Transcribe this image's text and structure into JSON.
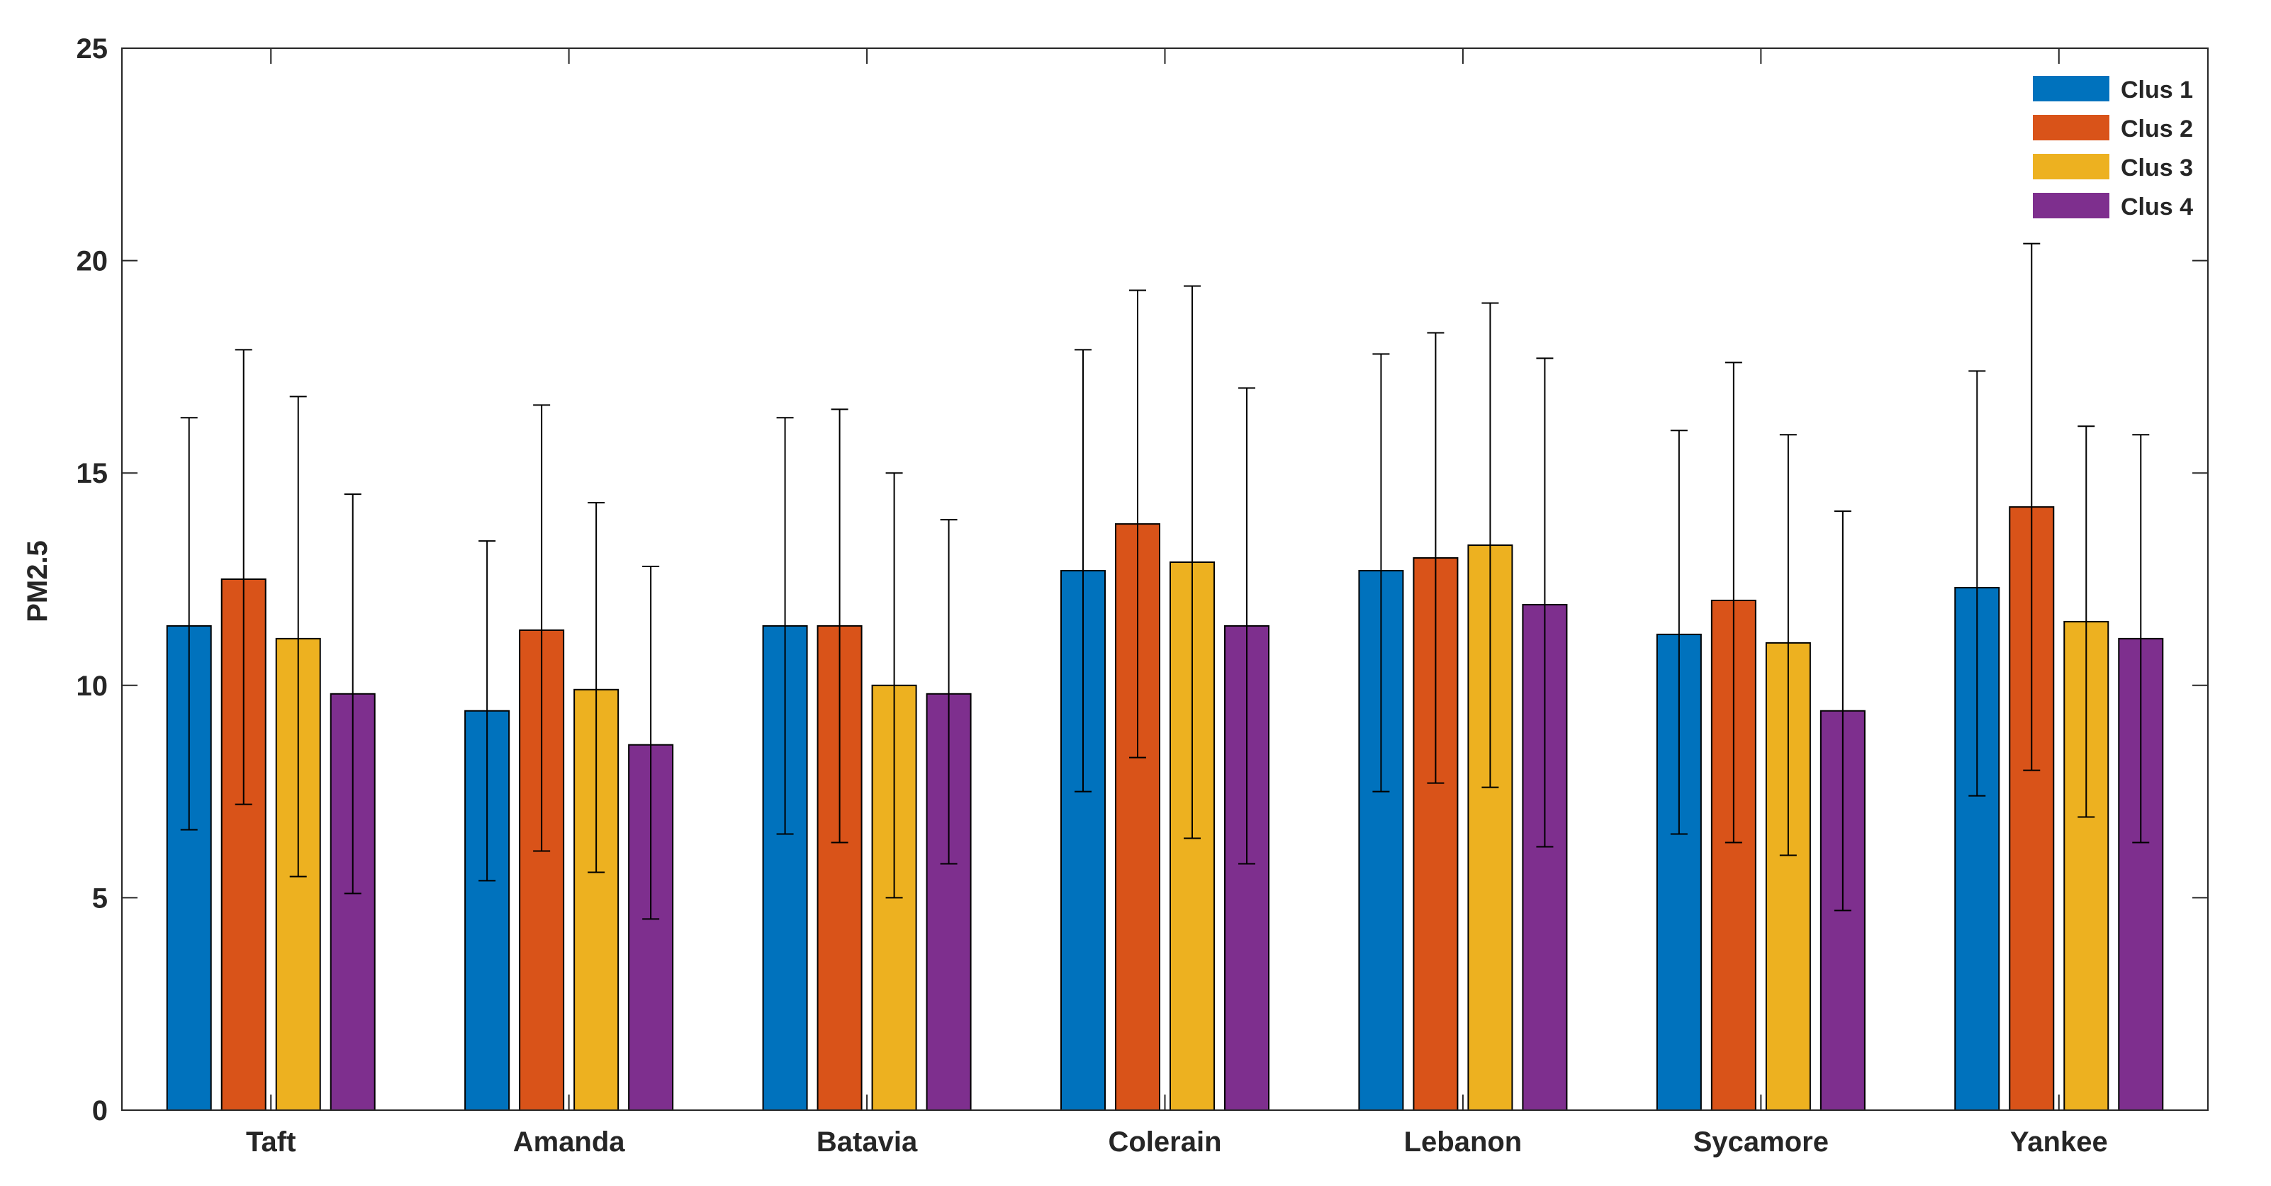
{
  "chart_data": {
    "type": "bar",
    "title": "",
    "xlabel": "",
    "ylabel": "PM2.5",
    "ylim": [
      0,
      25
    ],
    "yticks": [
      0,
      5,
      10,
      15,
      20,
      25
    ],
    "grid": false,
    "legend_position": "top-right",
    "error_bars": true,
    "categories": [
      "Taft",
      "Amanda",
      "Batavia",
      "Colerain",
      "Lebanon",
      "Sycamore",
      "Yankee"
    ],
    "series": [
      {
        "name": "Clus 1",
        "color": "#0072BD",
        "values": [
          11.4,
          9.4,
          11.4,
          12.7,
          12.7,
          11.2,
          12.3
        ],
        "err_low": [
          6.6,
          5.4,
          6.5,
          7.5,
          7.5,
          6.5,
          7.4
        ],
        "err_high": [
          16.3,
          13.4,
          16.3,
          17.9,
          17.8,
          16.0,
          17.4
        ]
      },
      {
        "name": "Clus 2",
        "color": "#D95319",
        "values": [
          12.5,
          11.3,
          11.4,
          13.8,
          13.0,
          12.0,
          14.2
        ],
        "err_low": [
          7.2,
          6.1,
          6.3,
          8.3,
          7.7,
          6.3,
          8.0
        ],
        "err_high": [
          17.9,
          16.6,
          16.5,
          19.3,
          18.3,
          17.6,
          20.4
        ]
      },
      {
        "name": "Clus 3",
        "color": "#EDB120",
        "values": [
          11.1,
          9.9,
          10.0,
          12.9,
          13.3,
          11.0,
          11.5
        ],
        "err_low": [
          5.5,
          5.6,
          5.0,
          6.4,
          7.6,
          6.0,
          6.9
        ],
        "err_high": [
          16.8,
          14.3,
          15.0,
          19.4,
          19.0,
          15.9,
          16.1
        ]
      },
      {
        "name": "Clus 4",
        "color": "#7E2F8E",
        "values": [
          9.8,
          8.6,
          9.8,
          11.4,
          11.9,
          9.4,
          11.1
        ],
        "err_low": [
          5.1,
          4.5,
          5.8,
          5.8,
          6.2,
          4.7,
          6.3
        ],
        "err_high": [
          14.5,
          12.8,
          13.9,
          17.0,
          17.7,
          14.1,
          15.9
        ]
      }
    ]
  }
}
